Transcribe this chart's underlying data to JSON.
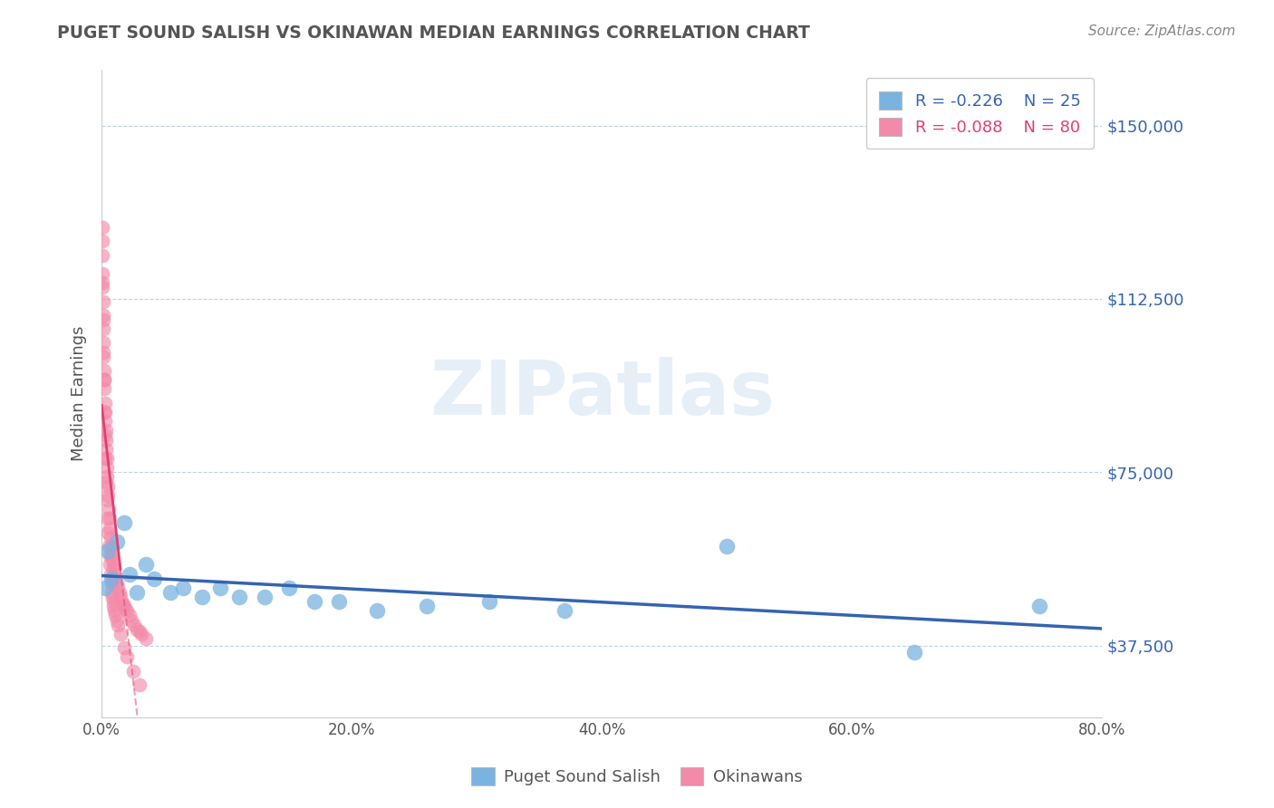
{
  "title": "PUGET SOUND SALISH VS OKINAWAN MEDIAN EARNINGS CORRELATION CHART",
  "source_text": "Source: ZipAtlas.com",
  "ylabel": "Median Earnings",
  "xlim": [
    0.0,
    80.0
  ],
  "ylim": [
    22000,
    162000
  ],
  "yticks": [
    37500,
    75000,
    112500,
    150000
  ],
  "ytick_labels": [
    "$37,500",
    "$75,000",
    "$112,500",
    "$150,000"
  ],
  "xticks": [
    0.0,
    20.0,
    40.0,
    60.0,
    80.0
  ],
  "xtick_labels": [
    "0.0%",
    "20.0%",
    "40.0%",
    "60.0%",
    "80.0%"
  ],
  "blue_R": -0.226,
  "blue_N": 25,
  "pink_R": -0.088,
  "pink_N": 80,
  "blue_color": "#7ab3e0",
  "pink_color": "#f48aaa",
  "blue_line_color": "#3464b0",
  "pink_line_color": "#e04070",
  "legend_label_blue": "Puget Sound Salish",
  "legend_label_pink": "Okinawans",
  "watermark": "ZIPatlas",
  "blue_scatter_x": [
    0.3,
    0.5,
    0.8,
    1.2,
    1.8,
    2.2,
    2.8,
    3.5,
    4.2,
    5.5,
    6.5,
    8.0,
    9.5,
    11.0,
    13.0,
    15.0,
    17.0,
    19.0,
    22.0,
    26.0,
    31.0,
    37.0,
    50.0,
    65.0,
    75.0
  ],
  "blue_scatter_y": [
    50000,
    58000,
    52000,
    60000,
    64000,
    53000,
    49000,
    55000,
    52000,
    49000,
    50000,
    48000,
    50000,
    48000,
    48000,
    50000,
    47000,
    47000,
    45000,
    46000,
    47000,
    45000,
    59000,
    36000,
    46000
  ],
  "pink_scatter_x": [
    0.05,
    0.07,
    0.08,
    0.09,
    0.1,
    0.11,
    0.12,
    0.14,
    0.16,
    0.18,
    0.2,
    0.22,
    0.25,
    0.28,
    0.3,
    0.32,
    0.35,
    0.38,
    0.4,
    0.42,
    0.45,
    0.48,
    0.5,
    0.55,
    0.6,
    0.65,
    0.7,
    0.75,
    0.8,
    0.85,
    0.9,
    0.95,
    1.0,
    1.1,
    1.2,
    1.3,
    1.4,
    1.5,
    1.6,
    1.7,
    1.8,
    1.9,
    2.0,
    2.2,
    2.4,
    2.6,
    2.8,
    3.0,
    3.2,
    3.5,
    0.06,
    0.09,
    0.12,
    0.15,
    0.18,
    0.22,
    0.26,
    0.3,
    0.35,
    0.4,
    0.45,
    0.5,
    0.55,
    0.6,
    0.65,
    0.7,
    0.75,
    0.8,
    0.85,
    0.9,
    0.95,
    1.0,
    1.1,
    1.2,
    1.3,
    1.5,
    1.8,
    2.0,
    2.5,
    3.0
  ],
  "pink_scatter_y": [
    128000,
    122000,
    118000,
    115000,
    112000,
    109000,
    106000,
    103000,
    100000,
    97000,
    95000,
    93000,
    90000,
    88000,
    86000,
    84000,
    82000,
    80000,
    78000,
    76000,
    74000,
    72000,
    70000,
    67000,
    65000,
    63000,
    61000,
    59000,
    57000,
    56000,
    55000,
    54000,
    53000,
    52000,
    51000,
    50000,
    49000,
    48000,
    47000,
    46500,
    46000,
    45500,
    45000,
    44000,
    43000,
    42000,
    41000,
    40500,
    40000,
    39000,
    125000,
    116000,
    108000,
    101000,
    95000,
    88000,
    83000,
    78000,
    73000,
    69000,
    65000,
    62000,
    59000,
    57000,
    55000,
    53000,
    51000,
    49000,
    48000,
    47000,
    46000,
    45000,
    44000,
    43000,
    42000,
    40000,
    37000,
    35000,
    32000,
    29000
  ]
}
